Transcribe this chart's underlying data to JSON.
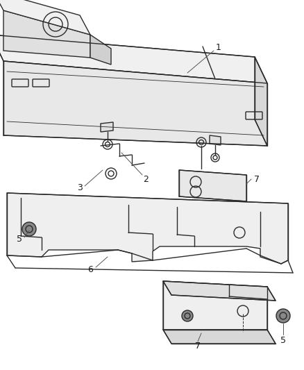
{
  "bg_color": "#ffffff",
  "line_color": "#2a2a2a",
  "label_color": "#1a1a1a",
  "figsize": [
    4.38,
    5.33
  ],
  "dpi": 100,
  "lw": 1.0
}
